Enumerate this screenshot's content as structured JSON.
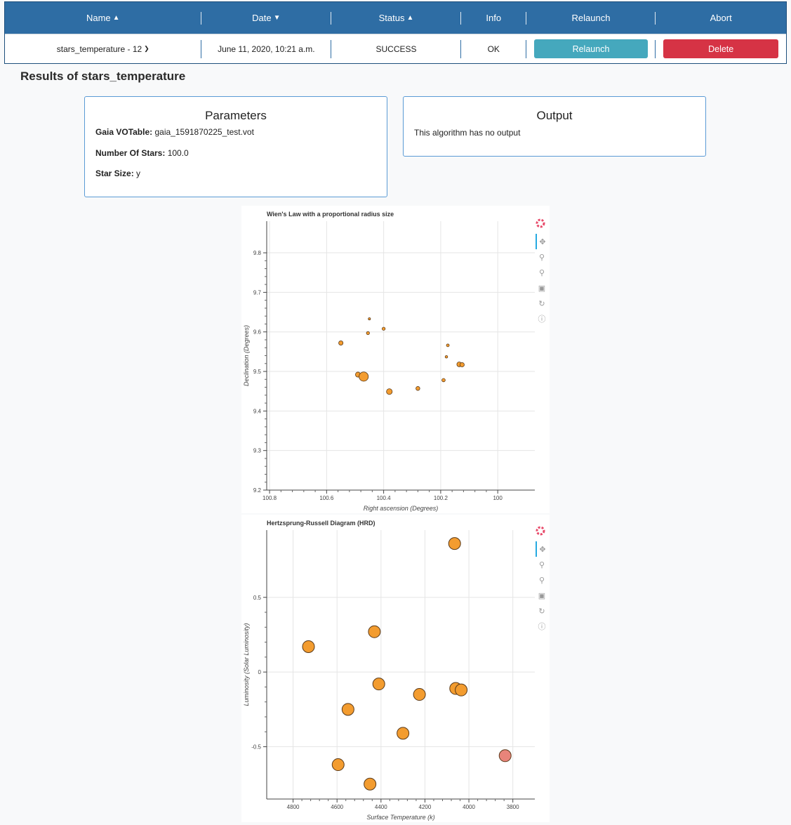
{
  "table": {
    "headers": {
      "name": "Name",
      "name_sort_icon": "sort-icon",
      "date": "Date",
      "date_sort_icon": "sort-desc-icon",
      "status": "Status",
      "status_sort_icon": "sort-icon",
      "info": "Info",
      "relaunch": "Relaunch",
      "abort": "Abort"
    },
    "row": {
      "name": "stars_temperature - 12",
      "date": "June 11, 2020, 10:21 a.m.",
      "status": "SUCCESS",
      "info": "OK",
      "relaunch_label": "Relaunch",
      "delete_label": "Delete"
    }
  },
  "results_title": "Results of stars_temperature",
  "parameters": {
    "title": "Parameters",
    "items": [
      {
        "label": "Gaia VOTable:",
        "value": "gaia_1591870225_test.vot"
      },
      {
        "label": "Number Of Stars:",
        "value": "100.0"
      },
      {
        "label": "Star Size:",
        "value": "y"
      }
    ]
  },
  "output": {
    "title": "Output",
    "text": "This algorithm has no output"
  },
  "colors": {
    "header_bg": "#2e6da4",
    "relaunch_btn": "#45a8bd",
    "delete_btn": "#d63345",
    "point_fill": "#f39c2f",
    "point_fill_cool": "#e8847a",
    "card_border": "#5b9bd5"
  },
  "toolbar_icons": [
    "bokeh-logo-icon",
    "pan-icon",
    "box-zoom-icon",
    "wheel-zoom-icon",
    "save-icon",
    "reset-icon",
    "help-icon"
  ],
  "chart_data": [
    {
      "type": "scatter",
      "title": "Wien's Law with a proportional radius size",
      "xlabel": "Right ascension (Degrees)",
      "ylabel": "Declination (Degrees)",
      "xlim": [
        100.81,
        99.87
      ],
      "ylim": [
        9.2,
        9.88
      ],
      "x_ticks": [
        100.8,
        100.6,
        100.4,
        100.2,
        100
      ],
      "x_tick_labels": [
        "100.8",
        "100.6",
        "100.4",
        "100.2",
        "100"
      ],
      "y_ticks": [
        9.2,
        9.3,
        9.4,
        9.5,
        9.6,
        9.7,
        9.8
      ],
      "y_tick_labels": [
        "9.2",
        "9.3",
        "9.4",
        "9.5",
        "9.6",
        "9.7",
        "9.8"
      ],
      "grid": true,
      "points": [
        {
          "x": 100.55,
          "y": 9.572,
          "size": 2.5,
          "tone": "warm"
        },
        {
          "x": 100.49,
          "y": 9.492,
          "size": 3,
          "tone": "warm"
        },
        {
          "x": 100.47,
          "y": 9.487,
          "size": 6,
          "tone": "warm"
        },
        {
          "x": 100.455,
          "y": 9.597,
          "size": 1.6,
          "tone": "warm"
        },
        {
          "x": 100.45,
          "y": 9.633,
          "size": 1,
          "tone": "warm"
        },
        {
          "x": 100.4,
          "y": 9.608,
          "size": 1.6,
          "tone": "warm"
        },
        {
          "x": 100.38,
          "y": 9.449,
          "size": 3.5,
          "tone": "warm"
        },
        {
          "x": 100.28,
          "y": 9.457,
          "size": 2.2,
          "tone": "warm"
        },
        {
          "x": 100.19,
          "y": 9.478,
          "size": 1.8,
          "tone": "warm"
        },
        {
          "x": 100.18,
          "y": 9.537,
          "size": 1.2,
          "tone": "warm"
        },
        {
          "x": 100.175,
          "y": 9.566,
          "size": 1.4,
          "tone": "warm"
        },
        {
          "x": 100.135,
          "y": 9.518,
          "size": 2.8,
          "tone": "warm"
        },
        {
          "x": 100.125,
          "y": 9.517,
          "size": 2.5,
          "tone": "warm"
        }
      ]
    },
    {
      "type": "scatter",
      "title": "Hertzsprung-Russell Diagram (HRD)",
      "xlabel": "Surface Temperature (k)",
      "ylabel": "Luminosity (Solar Luminosity)",
      "xlim": [
        4920,
        3700
      ],
      "ylim": [
        -0.85,
        0.95
      ],
      "x_ticks": [
        4800,
        4600,
        4400,
        4200,
        4000,
        3800
      ],
      "x_tick_labels": [
        "4800",
        "4600",
        "4400",
        "4200",
        "4000",
        "3800"
      ],
      "y_ticks": [
        -0.5,
        0,
        0.5
      ],
      "y_tick_labels": [
        "-0.5",
        "0",
        "0.5"
      ],
      "grid": true,
      "points": [
        {
          "x": 4730,
          "y": 0.17,
          "tone": "warm"
        },
        {
          "x": 4595,
          "y": -0.62,
          "tone": "warm"
        },
        {
          "x": 4550,
          "y": -0.25,
          "tone": "warm"
        },
        {
          "x": 4450,
          "y": -0.75,
          "tone": "warm"
        },
        {
          "x": 4430,
          "y": 0.27,
          "tone": "warm"
        },
        {
          "x": 4410,
          "y": -0.08,
          "tone": "warm"
        },
        {
          "x": 4300,
          "y": -0.41,
          "tone": "warm"
        },
        {
          "x": 4225,
          "y": -0.15,
          "tone": "warm"
        },
        {
          "x": 4065,
          "y": 0.86,
          "tone": "warm"
        },
        {
          "x": 4060,
          "y": -0.11,
          "tone": "warm"
        },
        {
          "x": 4035,
          "y": -0.12,
          "tone": "warm"
        },
        {
          "x": 3835,
          "y": -0.56,
          "tone": "cool"
        }
      ]
    }
  ]
}
